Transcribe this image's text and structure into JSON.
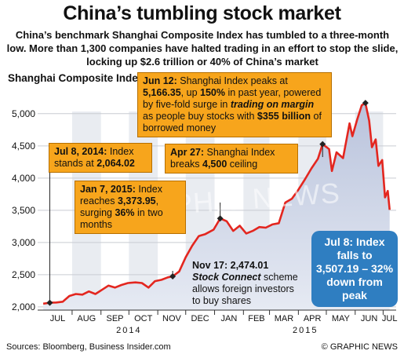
{
  "title": "China’s tumbling stock market",
  "subtitle": "China’s benchmark Shanghai Composite Index has tumbled to a three-month low. More than 1,300 companies have halted trading in an effort to stop the slide, locking up $2.6 trillion or 40% of China’s market",
  "colors": {
    "line": "#e3261f",
    "area_top": "#b9c3dc",
    "area_bottom": "#e6eaf3",
    "annotation": "#f7a51c",
    "callout": "#2f7ec1",
    "band": "#e9ecf1"
  },
  "annotations": {
    "jun12": {
      "date": "Jun 12:",
      "t1": " Shanghai Index peaks at ",
      "v1": "5,166.35",
      "t2": ", up ",
      "v2": "150%",
      "t3": " in past year, powered by five-fold surge in ",
      "v3": "trading on margin",
      "t4": " as people buy stocks with ",
      "v4": "$355 billion",
      "t5": " of borrowed money"
    },
    "jul8_2014": {
      "date": "Jul 8, 2014:",
      "t1": " Index stands at ",
      "v1": "2,064.02"
    },
    "apr27": {
      "date": "Apr 27:",
      "t1": " Shanghai Index breaks ",
      "v1": "4,500",
      "t2": " ceiling"
    },
    "jan7": {
      "date": "Jan 7, 2015:",
      "t1": " Index reaches ",
      "v1": "3,373.95",
      "t2": ", surging ",
      "v2": "36%",
      "t3": " in two months"
    },
    "nov17": {
      "date": "Nov 17: 2,474.01",
      "v1": "Stock Connect",
      "t1": " scheme allows foreign investors to buy shares"
    },
    "jul8_2015": "Jul 8: Index falls to 3,507.19 – 32% down from peak"
  },
  "watermark": "GRAPHIC NEWS",
  "footer": {
    "sources": "Sources: Bloomberg, Business Insider.com",
    "credit": "© GRAPHIC NEWS"
  },
  "chart_data": {
    "type": "line",
    "ylabel": "Shanghai Composite Index",
    "ylim": [
      1950,
      5400
    ],
    "yticks": [
      2000,
      2500,
      3000,
      3500,
      4000,
      4500,
      5000
    ],
    "ytick_labels": [
      "2,000",
      "2,500",
      "3,000",
      "3,500",
      "4,000",
      "4,500",
      "5,000"
    ],
    "months": [
      "JUL",
      "AUG",
      "SEP",
      "OCT",
      "NOV",
      "DEC",
      "JAN",
      "FEB",
      "MAR",
      "APR",
      "MAY",
      "JUN",
      "JUL"
    ],
    "years": [
      "2014",
      "2015"
    ],
    "series": [
      {
        "x": [
          "2014-07-01",
          "2014-07-08",
          "2014-07-15",
          "2014-07-22",
          "2014-07-29",
          "2014-08-05",
          "2014-08-12",
          "2014-08-19",
          "2014-08-26",
          "2014-09-02",
          "2014-09-09",
          "2014-09-16",
          "2014-09-23",
          "2014-09-30",
          "2014-10-08",
          "2014-10-15",
          "2014-10-22",
          "2014-10-29",
          "2014-11-05",
          "2014-11-12",
          "2014-11-17",
          "2014-11-24",
          "2014-12-01",
          "2014-12-08",
          "2014-12-15",
          "2014-12-22",
          "2014-12-31",
          "2015-01-07",
          "2015-01-14",
          "2015-01-21",
          "2015-01-28",
          "2015-02-04",
          "2015-02-11",
          "2015-02-18",
          "2015-02-25",
          "2015-03-04",
          "2015-03-11",
          "2015-03-18",
          "2015-03-25",
          "2015-04-01",
          "2015-04-08",
          "2015-04-15",
          "2015-04-22",
          "2015-04-27",
          "2015-05-04",
          "2015-05-07",
          "2015-05-12",
          "2015-05-19",
          "2015-05-26",
          "2015-05-29",
          "2015-06-03",
          "2015-06-08",
          "2015-06-12",
          "2015-06-16",
          "2015-06-19",
          "2015-06-23",
          "2015-06-26",
          "2015-06-30",
          "2015-07-03",
          "2015-07-06",
          "2015-07-08"
        ],
        "y": [
          2050,
          2064,
          2068,
          2080,
          2170,
          2200,
          2190,
          2240,
          2200,
          2265,
          2330,
          2300,
          2340,
          2370,
          2380,
          2370,
          2300,
          2400,
          2420,
          2460,
          2474,
          2550,
          2770,
          2950,
          3100,
          3130,
          3200,
          3374,
          3330,
          3180,
          3260,
          3140,
          3180,
          3240,
          3230,
          3280,
          3300,
          3620,
          3680,
          3820,
          3980,
          4150,
          4300,
          4527,
          4450,
          4110,
          4400,
          4310,
          4850,
          4650,
          4900,
          5130,
          5166,
          4890,
          4480,
          4600,
          4190,
          4280,
          3700,
          3800,
          3507
        ]
      }
    ],
    "markers": [
      {
        "x": "2014-07-08",
        "y": 2064.02
      },
      {
        "x": "2014-11-17",
        "y": 2474.01
      },
      {
        "x": "2015-01-07",
        "y": 3373.95
      },
      {
        "x": "2015-04-27",
        "y": 4527
      },
      {
        "x": "2015-06-12",
        "y": 5166.35
      }
    ],
    "grid": true
  }
}
